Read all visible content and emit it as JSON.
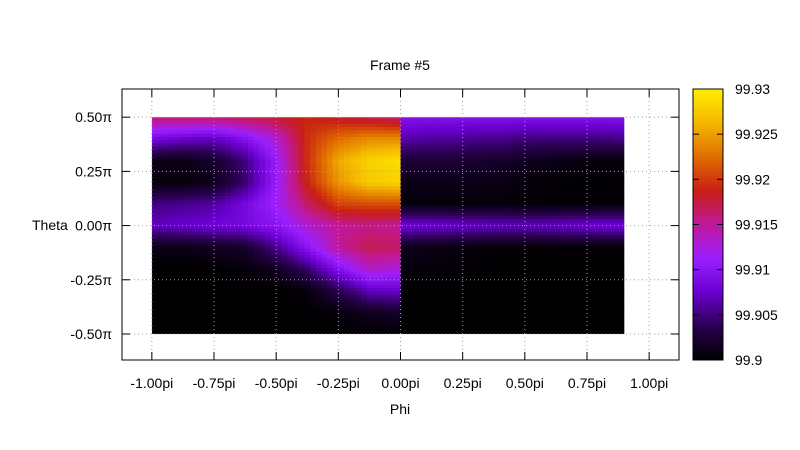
{
  "chart_data": {
    "type": "heatmap",
    "title": "Frame #5",
    "xlabel": "Phi",
    "ylabel": "Theta",
    "xlim": [
      -1.12,
      1.12
    ],
    "ylim": [
      -0.62,
      0.63
    ],
    "x_ticks": [
      {
        "value": -1.0,
        "label": "-1.00pi"
      },
      {
        "value": -0.75,
        "label": "-0.75pi"
      },
      {
        "value": -0.5,
        "label": "-0.50pi"
      },
      {
        "value": -0.25,
        "label": "-0.25pi"
      },
      {
        "value": 0.0,
        "label": "0.00pi"
      },
      {
        "value": 0.25,
        "label": "0.25pi"
      },
      {
        "value": 0.5,
        "label": "0.50pi"
      },
      {
        "value": 0.75,
        "label": "0.75pi"
      },
      {
        "value": 1.0,
        "label": "1.00pi"
      }
    ],
    "y_ticks": [
      {
        "value": 0.5,
        "label": "0.50π"
      },
      {
        "value": 0.25,
        "label": "0.25π"
      },
      {
        "value": 0.0,
        "label": "0.00π"
      },
      {
        "value": -0.25,
        "label": "-0.25π"
      },
      {
        "value": -0.5,
        "label": "-0.50π"
      }
    ],
    "grid": true,
    "data_extent": {
      "phi": [
        -1.0,
        0.9
      ],
      "theta": [
        -0.5,
        0.5
      ]
    },
    "colorbar": {
      "min": 99.9,
      "max": 99.93,
      "ticks": [
        {
          "value": 99.93,
          "label": "99.93"
        },
        {
          "value": 99.925,
          "label": "99.925"
        },
        {
          "value": 99.92,
          "label": "99.92"
        },
        {
          "value": 99.915,
          "label": "99.915"
        },
        {
          "value": 99.91,
          "label": "99.91"
        },
        {
          "value": 99.905,
          "label": "99.905"
        },
        {
          "value": 99.9,
          "label": "99.9"
        }
      ],
      "palette": [
        "#000000",
        "#2a0052",
        "#6a00d0",
        "#9b1fff",
        "#c0189a",
        "#c81e14",
        "#e06e00",
        "#f4b800",
        "#ffee00"
      ]
    },
    "theta_rows": [
      0.5,
      0.4,
      0.3,
      0.2,
      0.1,
      0.0,
      -0.1,
      -0.2,
      -0.3,
      -0.4,
      -0.5
    ],
    "left_region_phi": [
      -1.0,
      -0.875,
      -0.75,
      -0.625,
      -0.5,
      -0.375,
      -0.25,
      -0.125,
      0.0
    ],
    "left_region_values": [
      [
        99.9165,
        99.9165,
        99.9165,
        99.917,
        99.918,
        99.919,
        99.918,
        99.917,
        99.916
      ],
      [
        99.9085,
        99.9075,
        99.907,
        99.9095,
        99.913,
        99.9195,
        99.9225,
        99.924,
        99.924
      ],
      [
        99.901,
        99.901,
        99.902,
        99.905,
        99.911,
        99.9195,
        99.9255,
        99.928,
        99.929
      ],
      [
        99.9005,
        99.9005,
        99.9012,
        99.9045,
        99.911,
        99.919,
        99.9245,
        99.9275,
        99.928
      ],
      [
        99.905,
        99.9055,
        99.906,
        99.9085,
        99.9115,
        99.9165,
        99.9205,
        99.921,
        99.921
      ],
      [
        99.907,
        99.9075,
        99.908,
        99.9085,
        99.91,
        99.913,
        99.915,
        99.9155,
        99.915
      ],
      [
        99.901,
        99.901,
        99.9015,
        99.902,
        99.9055,
        99.91,
        99.915,
        99.917,
        99.9165
      ],
      [
        99.9,
        99.9,
        99.9,
        99.9005,
        99.9015,
        99.9045,
        99.9095,
        99.9135,
        99.9125
      ],
      [
        99.9,
        99.9,
        99.9,
        99.9,
        99.9,
        99.9005,
        99.9035,
        99.907,
        99.9075
      ],
      [
        99.9,
        99.9,
        99.9,
        99.9,
        99.9,
        99.9,
        99.9005,
        99.9015,
        99.902
      ],
      [
        99.9,
        99.9,
        99.9,
        99.9,
        99.9,
        99.9,
        99.9,
        99.9,
        99.9
      ]
    ],
    "right_region_phi": [
      0.0,
      0.1,
      0.2,
      0.3,
      0.4,
      0.5,
      0.6,
      0.7,
      0.8,
      0.9
    ],
    "right_region_values": [
      [
        99.9095,
        99.9095,
        99.9095,
        99.9095,
        99.9095,
        99.9095,
        99.9095,
        99.9095,
        99.9095,
        99.9095
      ],
      [
        99.9065,
        99.906,
        99.906,
        99.9055,
        99.9055,
        99.905,
        99.905,
        99.905,
        99.905,
        99.9055
      ],
      [
        99.9025,
        99.9025,
        99.9025,
        99.9022,
        99.902,
        99.9015,
        99.901,
        99.9008,
        99.9005,
        99.9005
      ],
      [
        99.901,
        99.901,
        99.901,
        99.901,
        99.9008,
        99.9005,
        99.9003,
        99.9002,
        99.9002,
        99.9002
      ],
      [
        99.9005,
        99.9005,
        99.9005,
        99.9005,
        99.9005,
        99.9003,
        99.9002,
        99.9002,
        99.9002,
        99.9002
      ],
      [
        99.908,
        99.9078,
        99.9075,
        99.9072,
        99.907,
        99.907,
        99.9072,
        99.9075,
        99.908,
        99.908
      ],
      [
        99.9012,
        99.901,
        99.9008,
        99.9005,
        99.9003,
        99.9002,
        99.9002,
        99.9002,
        99.9002,
        99.9002
      ],
      [
        99.9005,
        99.9005,
        99.9003,
        99.9002,
        99.9,
        99.9,
        99.9,
        99.9,
        99.9,
        99.9
      ],
      [
        99.9,
        99.9,
        99.9,
        99.9,
        99.9,
        99.9,
        99.9,
        99.9,
        99.9,
        99.9
      ],
      [
        99.9,
        99.9,
        99.9,
        99.9,
        99.9,
        99.9,
        99.9,
        99.9,
        99.9,
        99.9
      ],
      [
        99.9,
        99.9,
        99.9,
        99.9,
        99.9,
        99.9,
        99.9,
        99.9,
        99.9,
        99.9
      ]
    ]
  }
}
